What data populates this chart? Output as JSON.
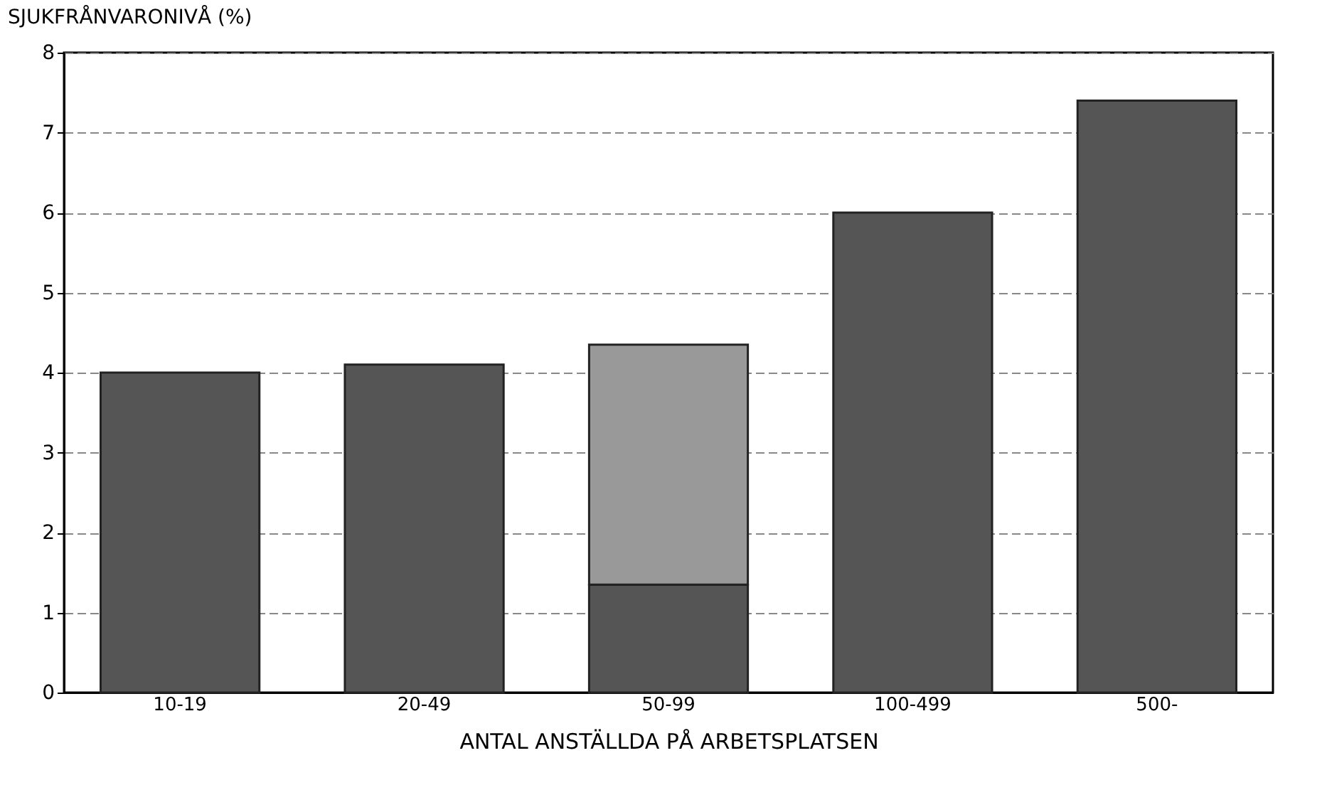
{
  "chart_data": {
    "type": "bar",
    "stacked": true,
    "ylabel": "SJUKFRÅNVARONIVÅ (%)",
    "xlabel": "ANTAL ANSTÄLLDA PÅ ARBETSPLATSEN",
    "categories": [
      "10-19",
      "20-49",
      "50-99",
      "100-499",
      "500-"
    ],
    "series": [
      {
        "color": "#555555",
        "values": [
          4.0,
          4.1,
          1.35,
          6.0,
          7.4
        ]
      },
      {
        "color": "#999999",
        "values": [
          null,
          null,
          3.0,
          null,
          null
        ]
      }
    ],
    "ylim": [
      0,
      8
    ],
    "yticks": [
      0,
      1,
      2,
      3,
      4,
      5,
      6,
      7,
      8
    ],
    "grid": "y"
  }
}
